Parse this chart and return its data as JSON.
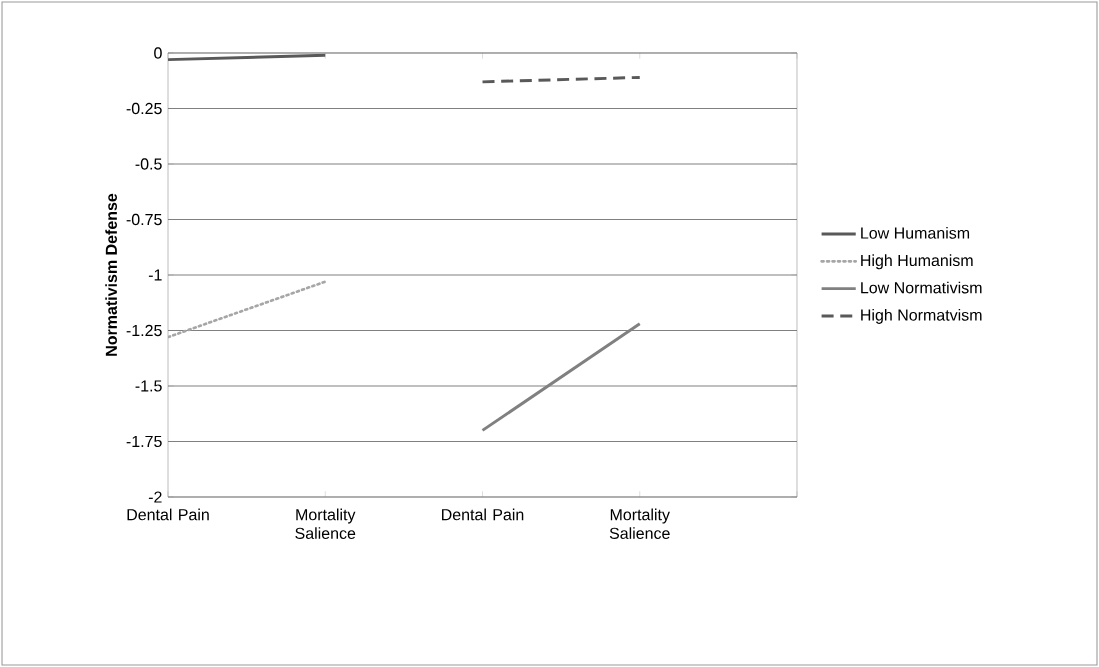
{
  "chart_data": {
    "type": "line",
    "ylabel": "Normativism Defense",
    "categories": [
      "Dental Pain",
      "Mortality Salience",
      "Dental Pain",
      "Mortality Salience",
      null
    ],
    "series": [
      {
        "name": "Low Humanism",
        "color": "#595959",
        "line_style": "solid",
        "values": [
          -0.03,
          -0.01,
          null,
          null,
          null
        ]
      },
      {
        "name": "High Humanism",
        "color": "#a6a6a6",
        "line_style": "dotted",
        "values": [
          -1.28,
          -1.03,
          null,
          null,
          null
        ]
      },
      {
        "name": "Low Normativism",
        "color": "#808080",
        "line_style": "solid",
        "values": [
          null,
          null,
          -1.7,
          -1.22,
          null
        ]
      },
      {
        "name": "High Normatvism",
        "color": "#595959",
        "line_style": "dashed",
        "values": [
          null,
          null,
          -0.13,
          -0.11,
          null
        ]
      }
    ],
    "ylim": [
      -2,
      0
    ],
    "yticks": [
      -2,
      -1.75,
      -1.5,
      -1.25,
      -1,
      -0.75,
      -0.5,
      -0.25,
      0
    ],
    "grid": "y",
    "legend": "right",
    "marker": "none"
  }
}
